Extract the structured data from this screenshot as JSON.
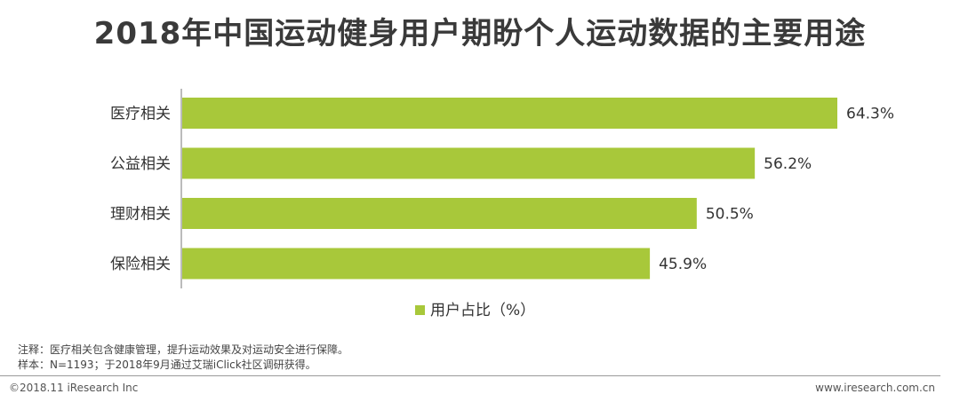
{
  "title": "2018年中国运动健身用户期盼个人运动数据的主要用途",
  "chart_data": {
    "type": "bar",
    "orientation": "horizontal",
    "categories": [
      "医疗相关",
      "公益相关",
      "理财相关",
      "保险相关"
    ],
    "series": [
      {
        "name": "用户占比（%）",
        "values": [
          64.3,
          56.2,
          50.5,
          45.9
        ],
        "value_labels": [
          "64.3%",
          "56.2%",
          "50.5%",
          "45.9%"
        ],
        "color": "#a8c83a"
      }
    ],
    "xlim": [
      0,
      64.3
    ],
    "grid": false,
    "legend": "bottom-center"
  },
  "notes": [
    "注释：医疗相关包含健康管理，提升运动效果及对运动安全进行保障。",
    "样本：N=1193；于2018年9月通过艾瑞iClick社区调研获得。"
  ],
  "footer": {
    "copyright": "©2018.11 iResearch Inc",
    "website": "www.iresearch.com.cn"
  }
}
